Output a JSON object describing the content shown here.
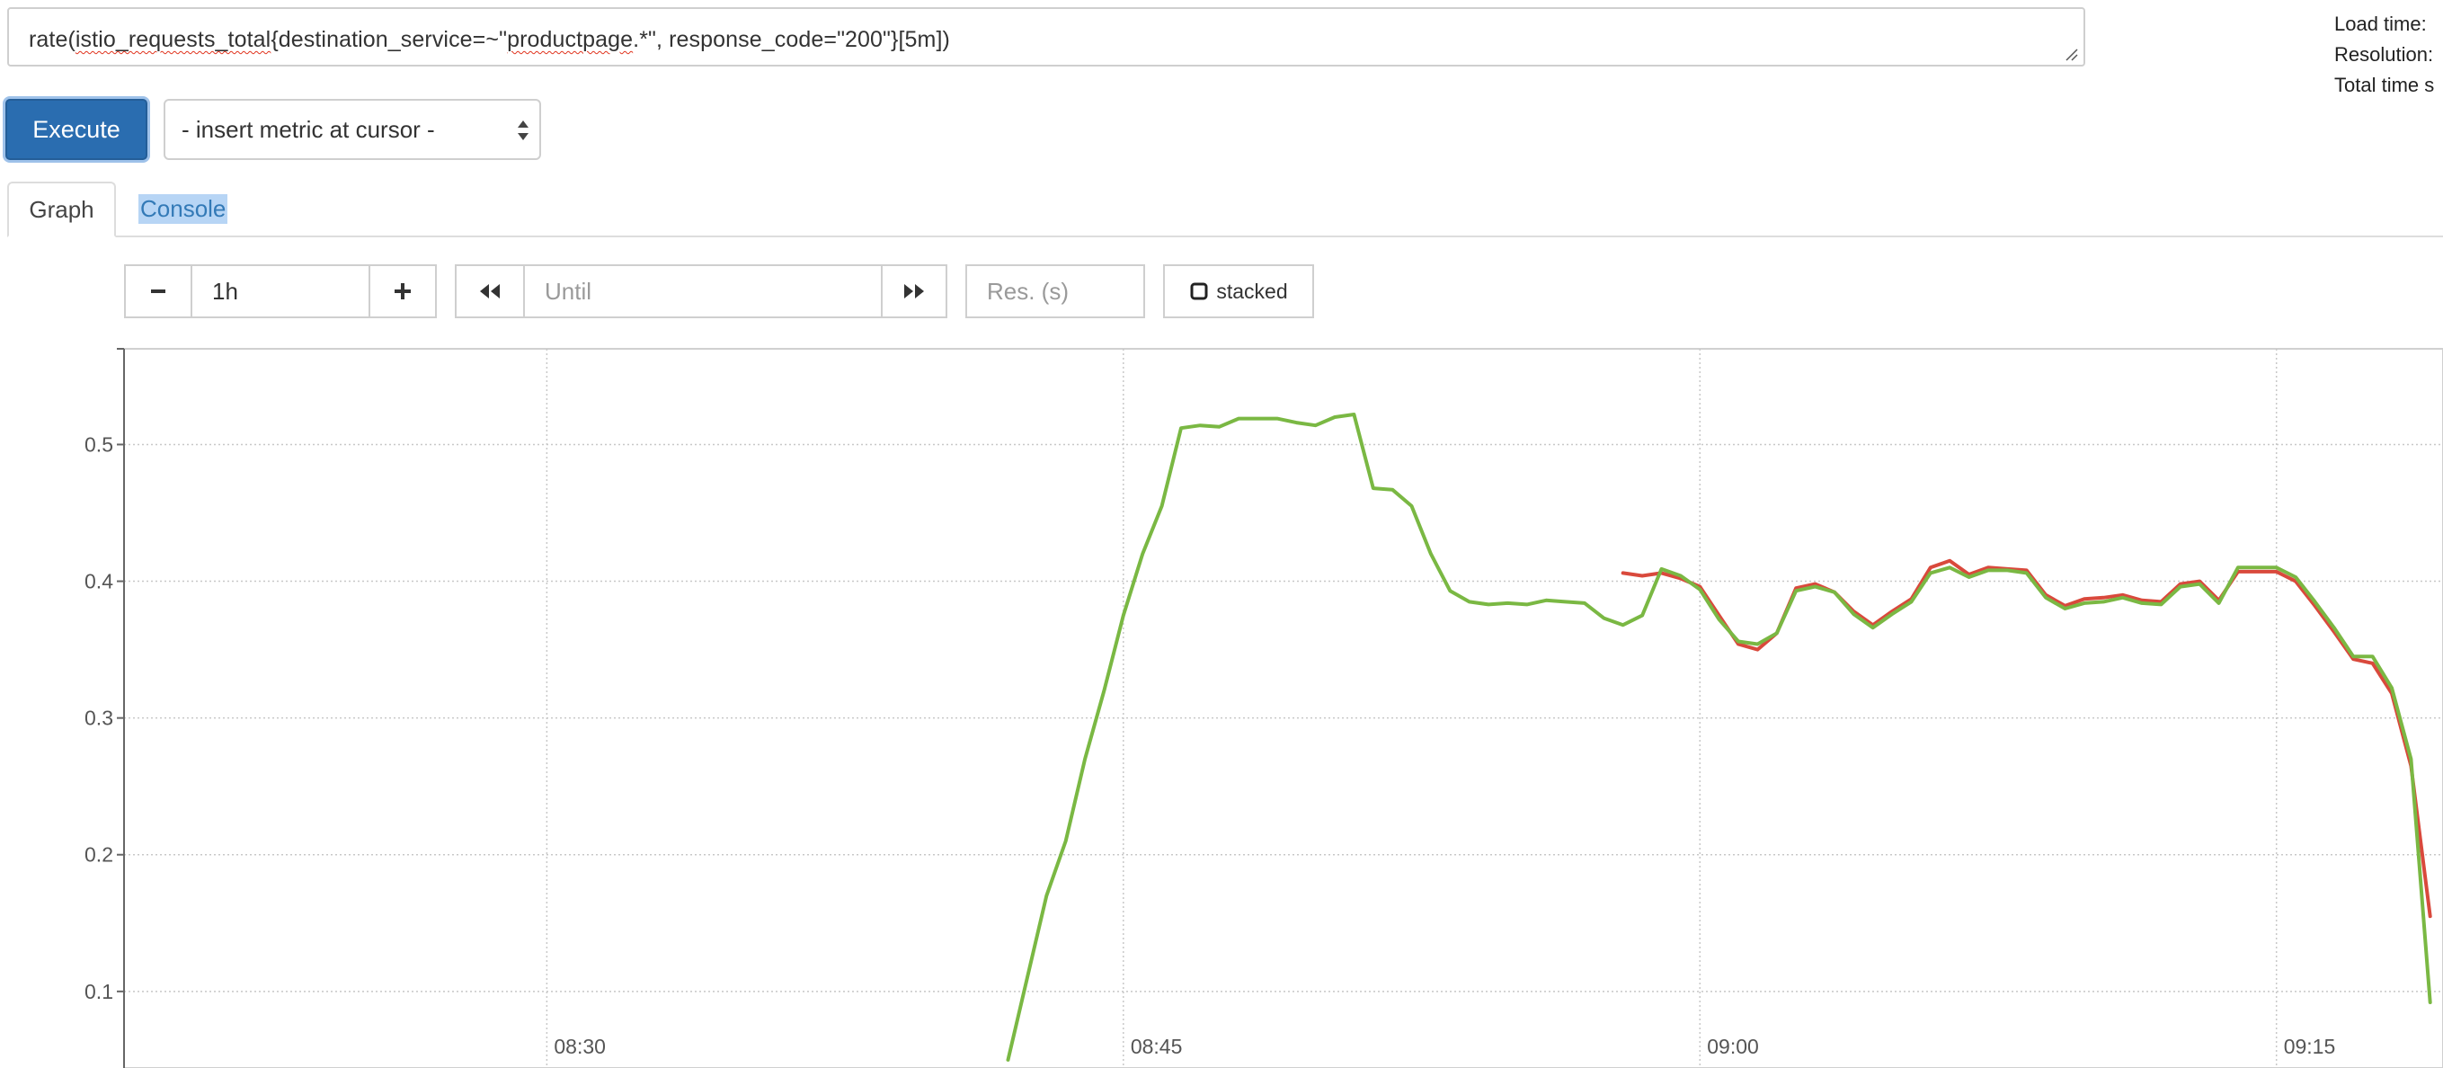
{
  "query": {
    "parts": [
      {
        "text": "rate(",
        "spell": false
      },
      {
        "text": "istio_requests_total",
        "spell": true
      },
      {
        "text": "{destination_service=~\"",
        "spell": false
      },
      {
        "text": "productpage",
        "spell": true
      },
      {
        "text": ".*\", response_code=\"200\"}[5m])",
        "spell": false
      }
    ]
  },
  "info_panel": {
    "load_time_label": "Load time:",
    "resolution_label": "Resolution:",
    "total_time_label": "Total time s"
  },
  "execute": {
    "label": "Execute"
  },
  "metric_select": {
    "selected": "- insert metric at cursor -"
  },
  "tabs": {
    "graph": "Graph",
    "console": "Console"
  },
  "controls": {
    "range_value": "1h",
    "until_placeholder": "Until",
    "res_placeholder": "Res. (s)",
    "stacked_label": "stacked"
  },
  "colors": {
    "accent": "#2a6db0",
    "series_red": "#d9493c",
    "series_green": "#7ab843"
  },
  "chart_data": {
    "type": "line",
    "title": "",
    "xlabel": "",
    "ylabel": "",
    "ylim": [
      0.044,
      0.57
    ],
    "xlim": [
      "08:19",
      "09:19:20"
    ],
    "grid": true,
    "y_ticks": [
      0.1,
      0.2,
      0.3,
      0.4,
      0.5
    ],
    "x_ticks": [
      "08:30",
      "08:45",
      "09:00",
      "09:15"
    ],
    "series": [
      {
        "x": [
          "08:58",
          "08:58:30",
          "08:59",
          "08:59:30",
          "09:00",
          "09:00:30",
          "09:01",
          "09:01:30",
          "09:02",
          "09:02:30",
          "09:03",
          "09:03:30",
          "09:04",
          "09:04:30",
          "09:05",
          "09:05:30",
          "09:06",
          "09:06:30",
          "09:07",
          "09:07:30",
          "09:08",
          "09:08:30",
          "09:09",
          "09:09:30",
          "09:10",
          "09:10:30",
          "09:11",
          "09:11:30",
          "09:12",
          "09:12:30",
          "09:13",
          "09:13:30",
          "09:14",
          "09:14:30",
          "09:15",
          "09:15:30",
          "09:16",
          "09:16:30",
          "09:17",
          "09:17:30",
          "09:18",
          "09:18:30",
          "09:19"
        ],
        "y": [
          0.406,
          0.404,
          0.406,
          0.402,
          0.396,
          0.375,
          0.354,
          0.35,
          0.362,
          0.395,
          0.398,
          0.392,
          0.378,
          0.368,
          0.378,
          0.387,
          0.41,
          0.415,
          0.405,
          0.41,
          0.409,
          0.408,
          0.39,
          0.382,
          0.387,
          0.388,
          0.39,
          0.386,
          0.385,
          0.398,
          0.4,
          0.386,
          0.407,
          0.407,
          0.407,
          0.4,
          0.382,
          0.363,
          0.343,
          0.34,
          0.318,
          0.265,
          0.155
        ]
      },
      {
        "x": [
          "08:42",
          "08:42:30",
          "08:43",
          "08:43:30",
          "08:44",
          "08:44:30",
          "08:45",
          "08:45:30",
          "08:46",
          "08:46:30",
          "08:47",
          "08:47:30",
          "08:48",
          "08:48:30",
          "08:49",
          "08:49:30",
          "08:50",
          "08:50:30",
          "08:51",
          "08:51:30",
          "08:52",
          "08:52:30",
          "08:53",
          "08:53:30",
          "08:54",
          "08:54:30",
          "08:55",
          "08:55:30",
          "08:56",
          "08:56:30",
          "08:57",
          "08:57:30",
          "08:58",
          "08:58:30",
          "08:59",
          "08:59:30",
          "09:00",
          "09:00:30",
          "09:01",
          "09:01:30",
          "09:02",
          "09:02:30",
          "09:03",
          "09:03:30",
          "09:04",
          "09:04:30",
          "09:05",
          "09:05:30",
          "09:06",
          "09:06:30",
          "09:07",
          "09:07:30",
          "09:08",
          "09:08:30",
          "09:09",
          "09:09:30",
          "09:10",
          "09:10:30",
          "09:11",
          "09:11:30",
          "09:12",
          "09:12:30",
          "09:13",
          "09:13:30",
          "09:14",
          "09:14:30",
          "09:15",
          "09:15:30",
          "09:16",
          "09:16:30",
          "09:17",
          "09:17:30",
          "09:18",
          "09:18:30",
          "09:19"
        ],
        "y": [
          0.05,
          0.11,
          0.17,
          0.21,
          0.27,
          0.32,
          0.375,
          0.42,
          0.455,
          0.512,
          0.514,
          0.513,
          0.519,
          0.519,
          0.519,
          0.516,
          0.514,
          0.52,
          0.522,
          0.468,
          0.467,
          0.455,
          0.42,
          0.393,
          0.385,
          0.383,
          0.384,
          0.383,
          0.386,
          0.385,
          0.384,
          0.373,
          0.368,
          0.375,
          0.409,
          0.404,
          0.394,
          0.372,
          0.356,
          0.354,
          0.362,
          0.393,
          0.396,
          0.392,
          0.376,
          0.366,
          0.376,
          0.385,
          0.406,
          0.41,
          0.403,
          0.408,
          0.408,
          0.406,
          0.388,
          0.38,
          0.384,
          0.385,
          0.388,
          0.384,
          0.383,
          0.396,
          0.398,
          0.384,
          0.41,
          0.41,
          0.41,
          0.403,
          0.385,
          0.366,
          0.345,
          0.345,
          0.322,
          0.27,
          0.092
        ]
      }
    ]
  }
}
